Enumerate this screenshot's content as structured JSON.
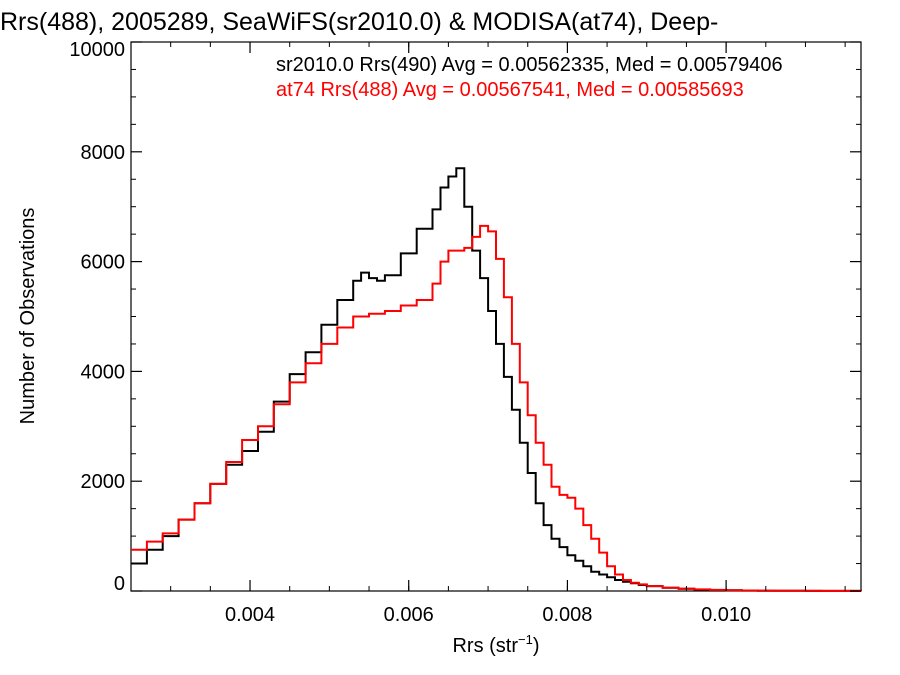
{
  "chart_data": {
    "type": "line",
    "title": "Rrs(488), 2005289, SeaWiFS(sr2010.0) & MODISA(at74), Deep-",
    "xlabel": "Rrs (str",
    "xlabel_sup": "−1",
    "xlabel_end": ")",
    "ylabel": "Number of Observations",
    "xlim": [
      0.0025,
      0.0117
    ],
    "ylim": [
      0,
      10000
    ],
    "xticks": [
      {
        "value": 0.004,
        "label": "0.004"
      },
      {
        "value": 0.006,
        "label": "0.006"
      },
      {
        "value": 0.008,
        "label": "0.008"
      },
      {
        "value": 0.01,
        "label": "0.010"
      }
    ],
    "yticks": [
      {
        "value": 0,
        "label": "0"
      },
      {
        "value": 2000,
        "label": "2000"
      },
      {
        "value": 4000,
        "label": "4000"
      },
      {
        "value": 6000,
        "label": "6000"
      },
      {
        "value": 8000,
        "label": "8000"
      },
      {
        "value": 10000,
        "label": "10000"
      }
    ],
    "grid": false,
    "legend_position": "top-right",
    "series": [
      {
        "name": "sr2010.0 Rrs(490) Avg = 0.00562335, Med = 0.00579406",
        "color": "#000000",
        "x": [
          0.0025,
          0.0027,
          0.0029,
          0.0031,
          0.0033,
          0.0035,
          0.0037,
          0.0039,
          0.0041,
          0.0043,
          0.0045,
          0.0047,
          0.0049,
          0.0051,
          0.0053,
          0.0054,
          0.0055,
          0.0056,
          0.0057,
          0.0059,
          0.0061,
          0.0063,
          0.0064,
          0.0065,
          0.0066,
          0.0067,
          0.0068,
          0.0069,
          0.007,
          0.0071,
          0.0072,
          0.0073,
          0.0074,
          0.0075,
          0.0076,
          0.0077,
          0.0078,
          0.0079,
          0.008,
          0.0081,
          0.0082,
          0.0083,
          0.0084,
          0.0085,
          0.0086,
          0.0087,
          0.0088,
          0.0089,
          0.009,
          0.0092,
          0.0094,
          0.0096,
          0.0098,
          0.01,
          0.0102,
          0.0104,
          0.0106,
          0.0108,
          0.011,
          0.0112,
          0.0114,
          0.0117
        ],
        "y": [
          500,
          750,
          1000,
          1300,
          1600,
          1950,
          2300,
          2550,
          2900,
          3450,
          3950,
          4350,
          4850,
          5300,
          5650,
          5800,
          5700,
          5650,
          5750,
          6150,
          6600,
          6950,
          7350,
          7550,
          7700,
          7000,
          6200,
          5700,
          5100,
          4500,
          3900,
          3300,
          2700,
          2150,
          1600,
          1200,
          950,
          800,
          650,
          550,
          450,
          350,
          300,
          250,
          200,
          170,
          140,
          110,
          90,
          60,
          40,
          25,
          18,
          12,
          8,
          5,
          4,
          3,
          2,
          1,
          1,
          0
        ]
      },
      {
        "name": "at74 Rrs(488) Avg = 0.00567541, Med = 0.00585693",
        "color": "#ff0000",
        "x": [
          0.0025,
          0.0027,
          0.0029,
          0.0031,
          0.0033,
          0.0035,
          0.0037,
          0.0039,
          0.0041,
          0.0043,
          0.0045,
          0.0047,
          0.0049,
          0.0051,
          0.0053,
          0.0055,
          0.0057,
          0.0059,
          0.0061,
          0.0063,
          0.0064,
          0.0065,
          0.0066,
          0.0067,
          0.0068,
          0.0069,
          0.007,
          0.0071,
          0.0072,
          0.0073,
          0.0074,
          0.0075,
          0.0076,
          0.0077,
          0.0078,
          0.0079,
          0.008,
          0.0081,
          0.0082,
          0.0083,
          0.0084,
          0.0085,
          0.0086,
          0.0087,
          0.0088,
          0.0089,
          0.009,
          0.0092,
          0.0094,
          0.0096,
          0.0098,
          0.01,
          0.0102,
          0.0104,
          0.0106,
          0.0108,
          0.011,
          0.0112,
          0.0114,
          0.0117
        ],
        "y": [
          750,
          900,
          1050,
          1300,
          1600,
          1950,
          2350,
          2750,
          3000,
          3400,
          3800,
          4150,
          4500,
          4800,
          5000,
          5050,
          5100,
          5200,
          5300,
          5600,
          6000,
          6200,
          6200,
          6250,
          6450,
          6650,
          6550,
          6050,
          5350,
          4500,
          3800,
          3200,
          2700,
          2300,
          1900,
          1750,
          1700,
          1500,
          1200,
          950,
          700,
          450,
          300,
          200,
          150,
          120,
          90,
          60,
          40,
          30,
          20,
          15,
          10,
          8,
          6,
          4,
          3,
          2,
          1,
          0
        ]
      }
    ]
  }
}
